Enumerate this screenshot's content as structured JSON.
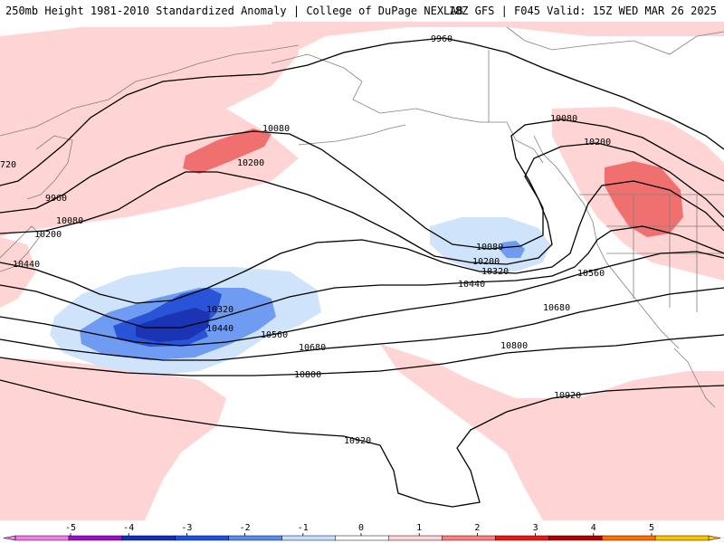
{
  "header": {
    "left_title": "250mb Height 1981-2010 Standardized Anomaly | College of DuPage NEXLAB",
    "right_title": "18Z GFS | F045 Valid: 15Z WED MAR 26 2025"
  },
  "contours": {
    "labels": [
      "9960",
      "10080",
      "10200",
      "10320",
      "10440",
      "10560",
      "10680",
      "10800",
      "10920",
      "720"
    ]
  },
  "legend": {
    "ticks": [
      "-5",
      "-4",
      "-3",
      "-2",
      "-1",
      "0",
      "1",
      "2",
      "3",
      "4",
      "5"
    ],
    "colors": [
      "#f080e8",
      "#9a10c8",
      "#1030b8",
      "#1e50e0",
      "#5a8cf0",
      "#c8e0ff",
      "#ffffff",
      "#ffd6d6",
      "#ff8080",
      "#e81818",
      "#b00000",
      "#ff7000",
      "#ffc400"
    ]
  },
  "colors": {
    "positive_weak": "#ffd4d4",
    "positive_strong": "#f07070",
    "negative_weak": "#cfe4fb",
    "negative_mid": "#6f9cf2",
    "negative_strong": "#2a54d8",
    "negative_core": "#1a34b4",
    "coastline": "#808080"
  }
}
